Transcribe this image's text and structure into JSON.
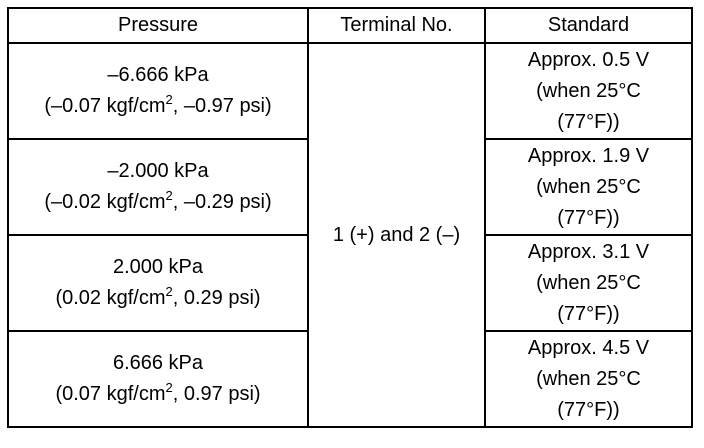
{
  "table": {
    "headers": [
      "Pressure",
      "Terminal No.",
      "Standard"
    ],
    "terminal": "1 (+) and 2 (–)",
    "rows": [
      {
        "pressure": "–6.666 kPa",
        "detail": [
          "(–0.07 kgf/cm",
          "2",
          ", –0.97 psi)"
        ],
        "standard": [
          "Approx. 0.5 V",
          "(when 25°C",
          "(77°F))"
        ]
      },
      {
        "pressure": "–2.000 kPa",
        "detail": [
          "(–0.02 kgf/cm",
          "2",
          ", –0.29 psi)"
        ],
        "standard": [
          "Approx. 1.9 V",
          "(when 25°C",
          "(77°F))"
        ]
      },
      {
        "pressure": "2.000 kPa",
        "detail": [
          "(0.02 kgf/cm",
          "2",
          ", 0.29 psi)"
        ],
        "standard": [
          "Approx. 3.1 V",
          "(when 25°C",
          "(77°F))"
        ]
      },
      {
        "pressure": "6.666 kPa",
        "detail": [
          "(0.07 kgf/cm",
          "2",
          ", 0.97 psi)"
        ],
        "standard": [
          "Approx. 4.5 V",
          "(when 25°C",
          "(77°F))"
        ]
      }
    ]
  }
}
